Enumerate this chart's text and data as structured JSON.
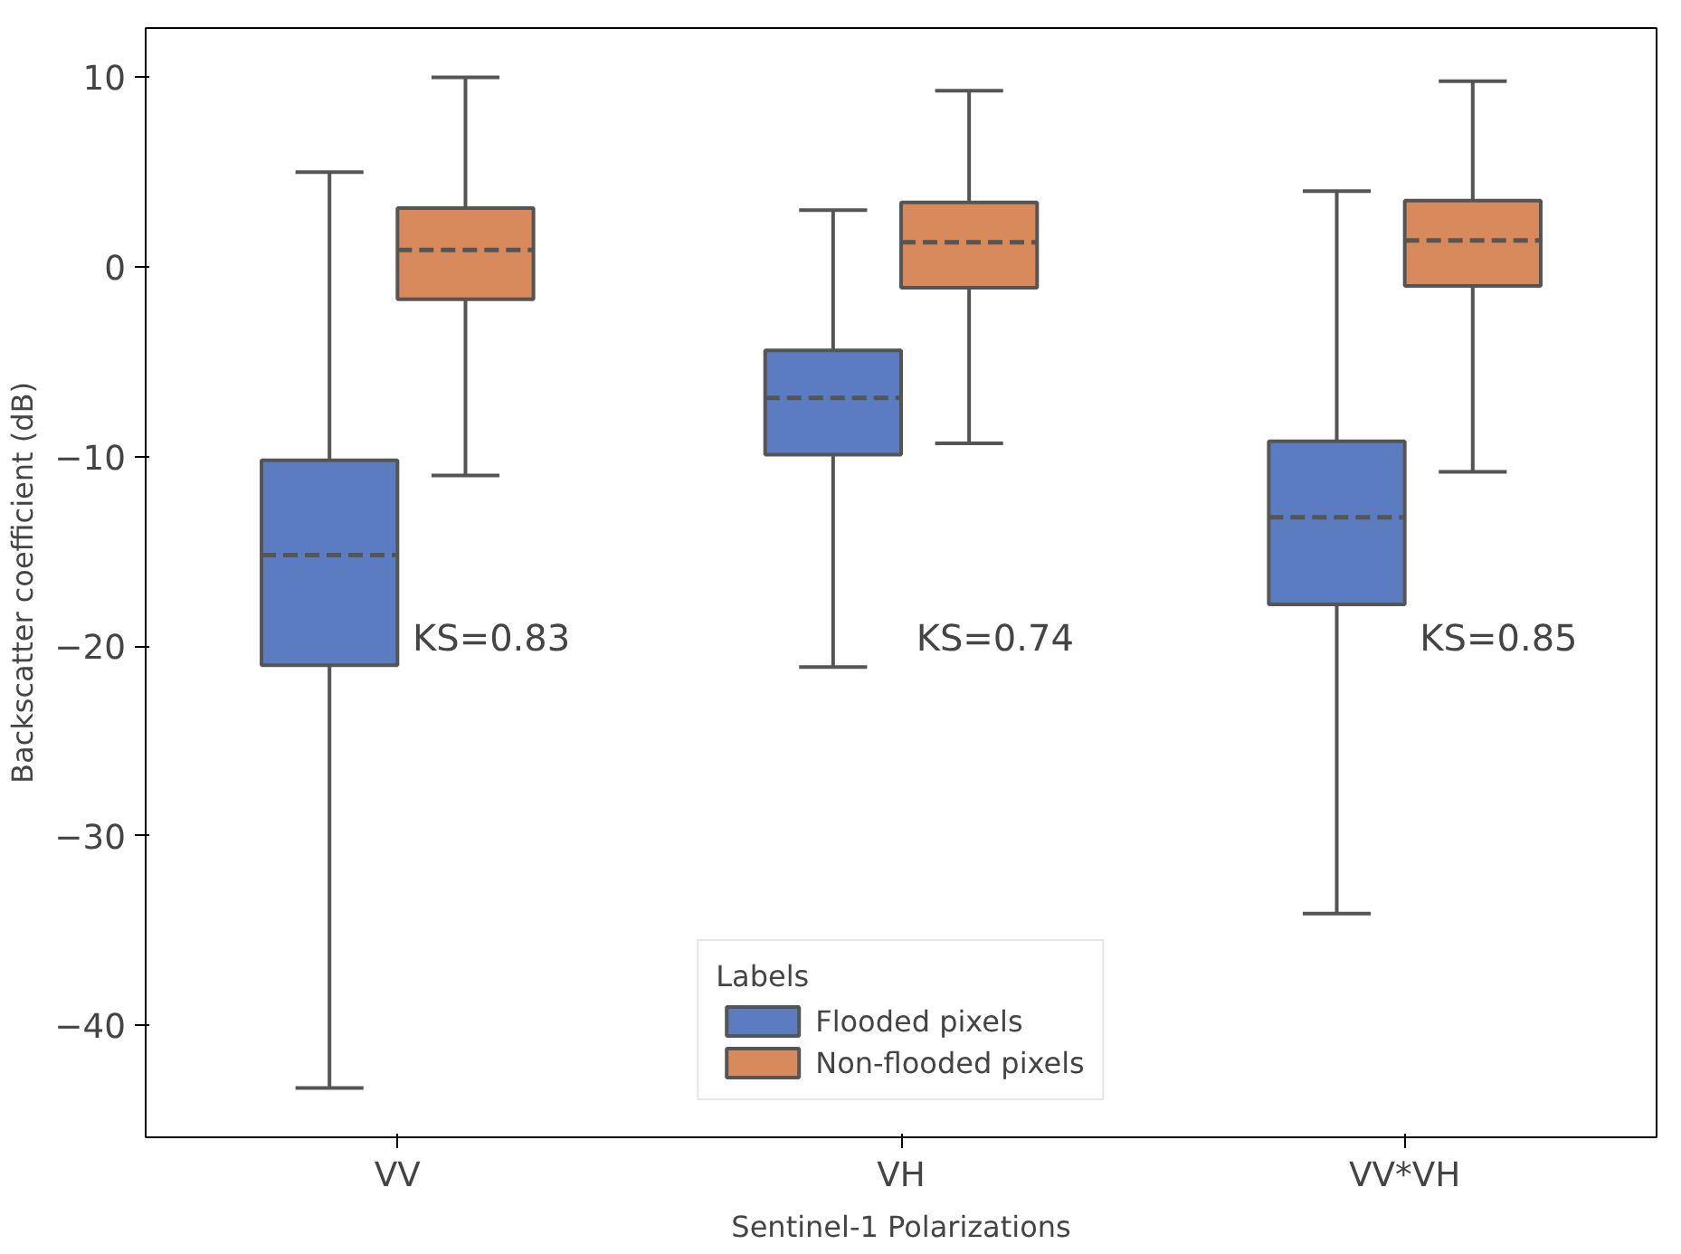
{
  "chart_data": {
    "type": "box",
    "xlabel": "Sentinel-1 Polarizations",
    "ylabel": "Backscatter coefficient (dB)",
    "legend_title": "Labels",
    "categories": [
      "VV",
      "VH",
      "VV*VH"
    ],
    "series": [
      {
        "name": "Flooded pixels",
        "color": "#5b7cc1",
        "boxes": [
          {
            "low": -43.3,
            "q1": -21.0,
            "median": -15.2,
            "q3": -10.2,
            "high": 5
          },
          {
            "low": -21.1,
            "q1": -9.9,
            "median": -6.9,
            "q3": -4.4,
            "high": 3
          },
          {
            "low": -34.1,
            "q1": -17.8,
            "median": -13.2,
            "q3": -9.2,
            "high": 4
          }
        ]
      },
      {
        "name": "Non-flooded pixels",
        "color": "#d88a5c",
        "boxes": [
          {
            "low": -11,
            "q1": -1.7,
            "median": 0.9,
            "q3": 3.1,
            "high": 10
          },
          {
            "low": -9.3,
            "q1": -1.1,
            "median": 1.3,
            "q3": 3.4,
            "high": 9.3
          },
          {
            "low": -10.8,
            "q1": -1.0,
            "median": 1.4,
            "q3": 3.5,
            "high": 9.8
          }
        ]
      }
    ],
    "ylim": [
      -45.9,
      12.6
    ],
    "yticks": [
      {
        "value": -40,
        "label": "−40"
      },
      {
        "value": -30,
        "label": "−30"
      },
      {
        "value": -20,
        "label": "−20"
      },
      {
        "value": -10,
        "label": "−10"
      },
      0,
      10
    ],
    "annotations": [
      "KS=0.83",
      "KS=0.74",
      "KS=0.85"
    ],
    "grid": false,
    "legend": "bottom"
  }
}
